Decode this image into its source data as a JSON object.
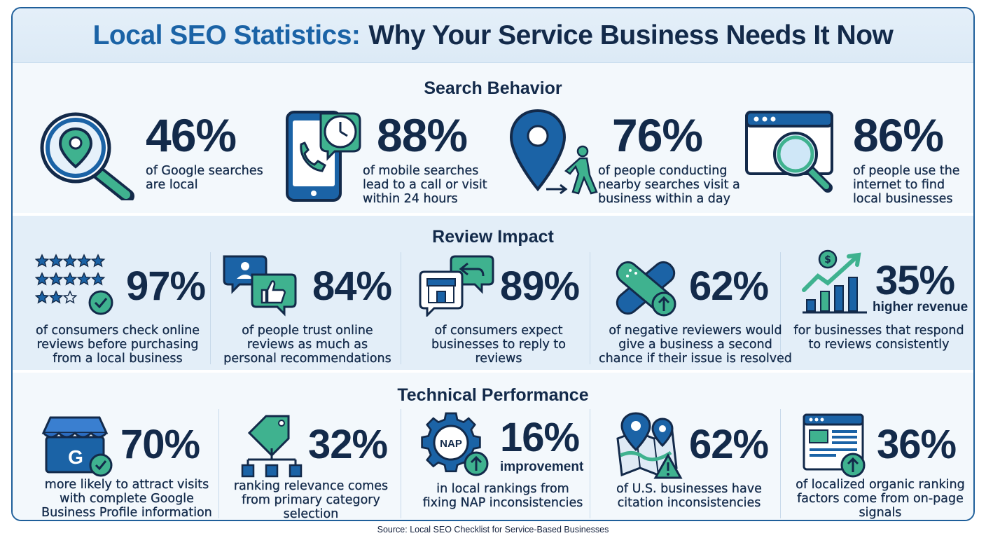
{
  "title": {
    "part1": "Local SEO Statistics:",
    "part2": "Why Your Service Business Needs It Now"
  },
  "sections": [
    {
      "title": "Search Behavior",
      "stats": [
        {
          "value": "46%",
          "text": "of Google searches are local",
          "icon": "search-location-icon"
        },
        {
          "value": "88%",
          "text": "of mobile searches lead to a call or visit within 24 hours",
          "icon": "phone-clock-icon"
        },
        {
          "value": "76%",
          "text": "of people conducting nearby searches visit a business within a day",
          "icon": "pin-walker-icon"
        },
        {
          "value": "86%",
          "text": "of people use the internet to find local businesses",
          "icon": "browser-search-icon"
        }
      ]
    },
    {
      "title": "Review Impact",
      "stats": [
        {
          "value": "97%",
          "text": "of consumers check online reviews before purchasing from a local business",
          "icon": "star-rating-icon"
        },
        {
          "value": "84%",
          "text": "of people trust online reviews as much as personal recommendations",
          "icon": "thumbs-up-chat-icon"
        },
        {
          "value": "89%",
          "text": "of consumers expect businesses to reply to reviews",
          "icon": "store-reply-icon"
        },
        {
          "value": "62%",
          "text": "of negative reviewers would give a business a second chance if their issue is resolved",
          "icon": "bandage-icon"
        },
        {
          "value": "35%",
          "subtitle": "higher revenue",
          "text": "for businesses that respond to reviews consistently",
          "icon": "revenue-growth-icon"
        }
      ]
    },
    {
      "title": "Technical Performance",
      "stats": [
        {
          "value": "70%",
          "text": "more likely to attract visits with complete Google Business Profile information",
          "icon": "google-business-icon"
        },
        {
          "value": "32%",
          "text": "ranking relevance comes from primary category selection",
          "icon": "category-tree-icon"
        },
        {
          "value": "16%",
          "subtitle": "improvement",
          "text": "in local rankings from fixing NAP inconsistencies",
          "icon": "nap-gear-icon",
          "badge": "NAP"
        },
        {
          "value": "62%",
          "text": "of U.S. businesses have citation inconsistencies",
          "icon": "map-warning-icon"
        },
        {
          "value": "36%",
          "text": "of localized organic ranking factors come from on-page signals",
          "icon": "webpage-upload-icon"
        }
      ]
    }
  ],
  "source": "Source: Local SEO Checklist for Service-Based Businesses",
  "colors": {
    "navy": "#132a4a",
    "blue": "#1b63a6",
    "green": "#3fb28f",
    "light": "#eef5fb"
  }
}
